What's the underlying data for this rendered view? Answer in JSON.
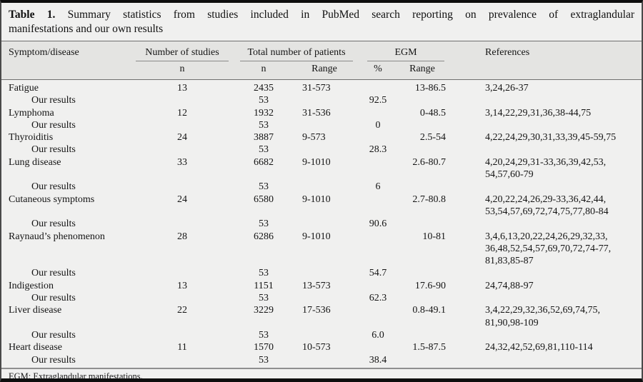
{
  "title": {
    "label": "Table 1.",
    "line1_rest": "Summary statistics from studies included in PubMed search reporting on prevalence of extraglandular",
    "line2": "manifestations and our own results"
  },
  "table": {
    "headers": {
      "symptom": "Symptom/disease",
      "studies_group": "Number of studies",
      "patients_group": "Total number of patients",
      "egm_group": "EGM",
      "references": "References",
      "sub": {
        "studies_n": "n",
        "patients_n": "n",
        "patients_range": "Range",
        "egm_pct": "%",
        "egm_range": "Range"
      }
    },
    "rows": [
      {
        "symptom": "Fatigue",
        "indent": false,
        "studies_n": "13",
        "patients_n": "2435",
        "patients_range": "31-573",
        "egm_pct": "",
        "egm_range": "13-86.5",
        "refs": [
          "3,24,26-37"
        ]
      },
      {
        "symptom": "Our results",
        "indent": true,
        "studies_n": "",
        "patients_n": "53",
        "patients_range": "",
        "egm_pct": "92.5",
        "egm_range": "",
        "refs": []
      },
      {
        "symptom": "Lymphoma",
        "indent": false,
        "studies_n": "12",
        "patients_n": "1932",
        "patients_range": "31-536",
        "egm_pct": "",
        "egm_range": "0-48.5",
        "refs": [
          "3,14,22,29,31,36,38-44,75"
        ]
      },
      {
        "symptom": "Our results",
        "indent": true,
        "studies_n": "",
        "patients_n": "53",
        "patients_range": "",
        "egm_pct": "0",
        "egm_range": "",
        "refs": []
      },
      {
        "symptom": "Thyroiditis",
        "indent": false,
        "studies_n": "24",
        "patients_n": "3887",
        "patients_range": "9-573",
        "egm_pct": "",
        "egm_range": "2.5-54",
        "refs": [
          "4,22,24,29,30,31,33,39,45-59,75"
        ]
      },
      {
        "symptom": "Our results",
        "indent": true,
        "studies_n": "",
        "patients_n": "53",
        "patients_range": "",
        "egm_pct": "28.3",
        "egm_range": "",
        "refs": []
      },
      {
        "symptom": "Lung disease",
        "indent": false,
        "studies_n": "33",
        "patients_n": "6682",
        "patients_range": "9-1010",
        "egm_pct": "",
        "egm_range": "2.6-80.7",
        "refs": [
          "4,20,24,29,31-33,36,39,42,53,",
          "54,57,60-79"
        ]
      },
      {
        "symptom": "Our results",
        "indent": true,
        "studies_n": "",
        "patients_n": "53",
        "patients_range": "",
        "egm_pct": "6",
        "egm_range": "",
        "refs": []
      },
      {
        "symptom": "Cutaneous symptoms",
        "indent": false,
        "studies_n": "24",
        "patients_n": "6580",
        "patients_range": "9-1010",
        "egm_pct": "",
        "egm_range": "2.7-80.8",
        "refs": [
          "4,20,22,24,26,29-33,36,42,44,",
          "53,54,57,69,72,74,75,77,80-84"
        ]
      },
      {
        "symptom": "Our results",
        "indent": true,
        "studies_n": "",
        "patients_n": "53",
        "patients_range": "",
        "egm_pct": "90.6",
        "egm_range": "",
        "refs": []
      },
      {
        "symptom": "Raynaud’s phenomenon",
        "indent": false,
        "studies_n": "28",
        "patients_n": "6286",
        "patients_range": "9-1010",
        "egm_pct": "",
        "egm_range": "10-81",
        "refs": [
          "3,4,6,13,20,22,24,26,29,32,33,",
          "36,48,52,54,57,69,70,72,74-77,",
          "81,83,85-87"
        ]
      },
      {
        "symptom": "Our results",
        "indent": true,
        "studies_n": "",
        "patients_n": "53",
        "patients_range": "",
        "egm_pct": "54.7",
        "egm_range": "",
        "refs": []
      },
      {
        "symptom": "Indigestion",
        "indent": false,
        "studies_n": "13",
        "patients_n": "1151",
        "patients_range": "13-573",
        "egm_pct": "",
        "egm_range": "17.6-90",
        "refs": [
          "24,74,88-97"
        ]
      },
      {
        "symptom": "Our results",
        "indent": true,
        "studies_n": "",
        "patients_n": "53",
        "patients_range": "",
        "egm_pct": "62.3",
        "egm_range": "",
        "refs": []
      },
      {
        "symptom": "Liver disease",
        "indent": false,
        "studies_n": "22",
        "patients_n": "3229",
        "patients_range": "17-536",
        "egm_pct": "",
        "egm_range": "0.8-49.1",
        "refs": [
          "3,4,22,29,32,36,52,69,74,75,",
          "81,90,98-109"
        ]
      },
      {
        "symptom": "Our results",
        "indent": true,
        "studies_n": "",
        "patients_n": "53",
        "patients_range": "",
        "egm_pct": "6.0",
        "egm_range": "",
        "refs": []
      },
      {
        "symptom": "Heart disease",
        "indent": false,
        "studies_n": "11",
        "patients_n": "1570",
        "patients_range": "10-573",
        "egm_pct": "",
        "egm_range": "1.5-87.5",
        "refs": [
          "24,32,42,52,69,81,110-114"
        ]
      },
      {
        "symptom": "Our results",
        "indent": true,
        "studies_n": "",
        "patients_n": "53",
        "patients_range": "",
        "egm_pct": "38.4",
        "egm_range": "",
        "refs": []
      }
    ]
  },
  "footnote": "EGM: Extraglandular manifestations.",
  "colors": {
    "background": "#f0f0ef",
    "header_band": "#e4e4e2",
    "frame_bar": "#0e0e0e",
    "rule": "#6f6f6f",
    "text": "#141414"
  }
}
